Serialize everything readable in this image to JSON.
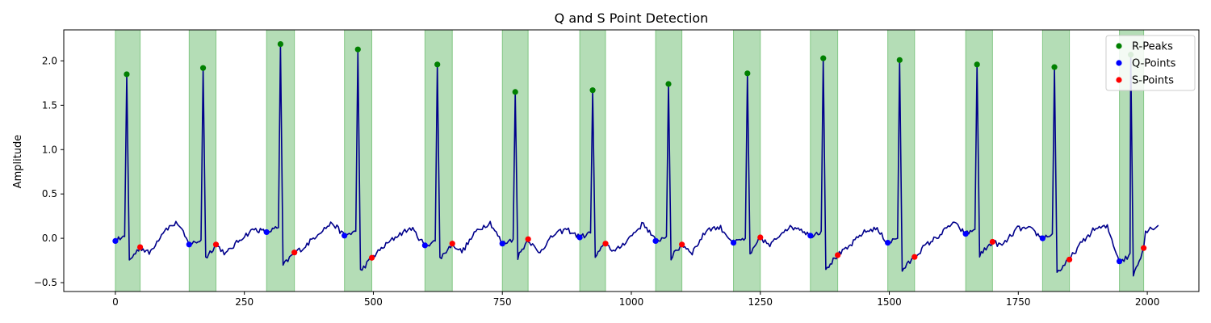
{
  "chart_data": {
    "type": "line",
    "title": "Q and S Point Detection",
    "xlabel": "",
    "ylabel": "Amplitude",
    "xlim": [
      -100,
      2100
    ],
    "ylim": [
      -0.6,
      2.35
    ],
    "x_ticks": [
      0,
      250,
      500,
      750,
      1000,
      1250,
      1500,
      1750,
      2000
    ],
    "y_ticks": [
      -0.5,
      0.0,
      0.5,
      1.0,
      1.5,
      2.0
    ],
    "x_tick_labels": [
      "0",
      "250",
      "500",
      "750",
      "1000",
      "1250",
      "1500",
      "1750",
      "2000"
    ],
    "y_tick_labels": [
      "−0.5",
      "0.0",
      "0.5",
      "1.0",
      "1.5",
      "2.0"
    ],
    "grid": false,
    "legend_position": "top-right",
    "colors": {
      "signal": "#00008b",
      "r_peaks": "#008000",
      "q_points": "#0000ff",
      "s_points": "#ff0000",
      "qrs_band": "#4caf50"
    },
    "qrs_regions": [
      [
        0,
        48
      ],
      [
        143,
        195
      ],
      [
        293,
        347
      ],
      [
        444,
        497
      ],
      [
        600,
        653
      ],
      [
        750,
        800
      ],
      [
        900,
        950
      ],
      [
        1047,
        1098
      ],
      [
        1198,
        1250
      ],
      [
        1347,
        1400
      ],
      [
        1497,
        1549
      ],
      [
        1648,
        1700
      ],
      [
        1797,
        1849
      ],
      [
        1946,
        1993
      ]
    ],
    "series": [
      {
        "name": "R-Peaks",
        "x": [
          22,
          170,
          320,
          470,
          624,
          775,
          925,
          1072,
          1225,
          1372,
          1520,
          1670,
          1820,
          1968
        ],
        "y": [
          1.85,
          1.92,
          2.19,
          2.13,
          1.96,
          1.65,
          1.67,
          1.74,
          1.86,
          2.03,
          2.01,
          1.96,
          1.93,
          2.07
        ]
      },
      {
        "name": "Q-Points",
        "x": [
          0,
          143,
          293,
          444,
          600,
          750,
          900,
          1047,
          1198,
          1347,
          1497,
          1648,
          1797,
          1946
        ],
        "y": [
          -0.03,
          -0.07,
          0.07,
          0.03,
          -0.08,
          -0.06,
          0.01,
          -0.03,
          -0.05,
          0.03,
          -0.05,
          0.05,
          0.0,
          -0.26
        ]
      },
      {
        "name": "S-Points",
        "x": [
          48,
          195,
          347,
          497,
          653,
          800,
          950,
          1098,
          1250,
          1400,
          1549,
          1700,
          1849,
          1993
        ],
        "y": [
          -0.1,
          -0.07,
          -0.16,
          -0.22,
          -0.06,
          -0.01,
          -0.06,
          -0.07,
          0.01,
          -0.19,
          -0.21,
          -0.04,
          -0.24,
          -0.11
        ]
      }
    ]
  }
}
